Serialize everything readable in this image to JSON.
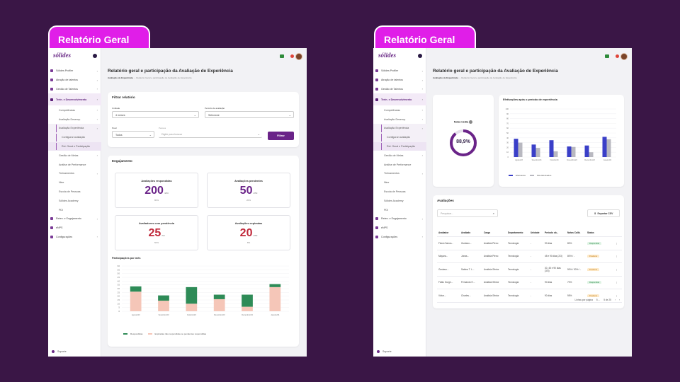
{
  "slide_tag": "Relatório Geral",
  "app": {
    "logo": "sólides",
    "page_title": "Relatório geral e participação da Avaliação de Experiência",
    "breadcrumb_1": "Avaliação de Experiência",
    "breadcrumb_2": "Relatório Geral e participação de Avaliação de Experiência",
    "support": "Suporte"
  },
  "sidebar": {
    "items": [
      {
        "label": "Sólides Profiler",
        "level": 0,
        "chevron": true
      },
      {
        "label": "Atração de talentos",
        "level": 0,
        "chevron": true
      },
      {
        "label": "Gestão de Talentos",
        "level": 0,
        "chevron": true
      },
      {
        "label": "Trein. e Desenvolvimento",
        "level": 0,
        "chevron": true,
        "active": true
      },
      {
        "label": "Competências",
        "level": 1,
        "chevron": true
      },
      {
        "label": "Avaliação Desemp.",
        "level": 1,
        "chevron": true
      },
      {
        "label": "Avaliação Experiência",
        "level": 1,
        "chevron": true,
        "highlight": true
      },
      {
        "label": "Configurar avaliação",
        "level": 2,
        "highlight": true
      },
      {
        "label": "Rel. Geral e Participação",
        "level": 2,
        "highlight": true,
        "current": true
      },
      {
        "label": "Gestão de Metas",
        "level": 1,
        "chevron": true
      },
      {
        "label": "Análise de Performance",
        "level": 1
      },
      {
        "label": "Treinamentos",
        "level": 1,
        "chevron": true
      },
      {
        "label": "Nine",
        "level": 1
      },
      {
        "label": "Escola de Pessoas",
        "level": 1
      },
      {
        "label": "Sólides Academy",
        "level": 1
      },
      {
        "label": "PDI",
        "level": 1
      },
      {
        "label": "Reten. e Engajamento",
        "level": 0,
        "chevron": true
      },
      {
        "label": "eNPS",
        "level": 0
      },
      {
        "label": "Configurações",
        "level": 0,
        "chevron": true
      }
    ]
  },
  "filter": {
    "title": "Filtrar relatório",
    "unidade_label": "Unidade",
    "unidade_value": "4 meses",
    "periodo_label": "Período de avaliação",
    "periodo_value": "Selecione",
    "nivel_label": "Nível",
    "nivel_value": "Todos",
    "pessoa_label": "Pessoa",
    "pessoa_placeholder": "Digite para buscar",
    "button": "Filtrar"
  },
  "engagement": {
    "title": "Engajamento",
    "stats": [
      {
        "title": "Avaliações respondidas",
        "value": "200",
        "unit": "/250",
        "pct": "80%",
        "color": "#6a2388"
      },
      {
        "title": "Avaliações pendentes",
        "value": "50",
        "unit": "/250",
        "pct": "20%",
        "color": "#6a2388"
      },
      {
        "title": "Avaliadores com pendência",
        "value": "25",
        "unit": "/50",
        "pct": "50%",
        "color": "#c0283a"
      },
      {
        "title": "Avaliações expiradas",
        "value": "20",
        "unit": "/250",
        "pct": "8%",
        "color": "#c0283a"
      }
    ],
    "chart_title": "Participações por mês",
    "legend_1": "Respondidas",
    "legend_2": "Expiradas não respondidas ou pendentes respondidas"
  },
  "chart_data": [
    {
      "type": "bar",
      "title": "Participações por mês",
      "stacked": true,
      "categories": [
        "Agosto/23",
        "Setembro/23",
        "Outubro/23",
        "Novembro/23",
        "Dezembro/23",
        "Janeiro/24"
      ],
      "series": [
        {
          "name": "Expiradas não respondidas ou pendentes respondidas",
          "values": [
            26,
            14,
            10,
            16,
            6,
            32
          ],
          "color": "#f5c6b8"
        },
        {
          "name": "Respondidas",
          "values": [
            7,
            7,
            22,
            6,
            16,
            4
          ],
          "color": "#2e8b57"
        }
      ],
      "ylim": [
        0,
        60
      ],
      "yticks": [
        0,
        5,
        10,
        15,
        20,
        25,
        30,
        35,
        40,
        45,
        50,
        55,
        60
      ],
      "grid": true,
      "legend": "bottom-left"
    },
    {
      "type": "bar",
      "title": "Efetivações após o período de experiência",
      "categories": [
        "Agosto/23",
        "Setembro/23",
        "Outubro/23",
        "Novembro/23",
        "Dezembro/23",
        "Janeiro/24"
      ],
      "series": [
        {
          "name": "Efetivados",
          "values": [
            38,
            26,
            35,
            22,
            24,
            42
          ],
          "color": "#3a3fc8"
        },
        {
          "name": "Não Efetivados",
          "values": [
            30,
            19,
            12,
            21,
            10,
            37
          ],
          "color": "#b8b8c0"
        }
      ],
      "ylim": [
        0,
        100
      ],
      "yticks": [
        0,
        10,
        20,
        30,
        40,
        50,
        60,
        70,
        80,
        90,
        100
      ],
      "grid": true,
      "legend": "bottom-left"
    }
  ],
  "nota": {
    "label": "Nota média",
    "value": "88,9%",
    "fraction": 0.889
  },
  "effect_chart": {
    "title": "Efetivações após o período de experiência",
    "legend_1": "Efetivados",
    "legend_2": "Não Efetivados"
  },
  "evaluations": {
    "title": "Avaliações",
    "search_placeholder": "Pesquisar...",
    "export": "Exportar CSV",
    "headers": [
      "Avaliador",
      "Avaliado",
      "Cargo",
      "Departamento",
      "Unidade",
      "Período ob...",
      "Notas Calib.",
      "Status"
    ],
    "rows": [
      [
        "Flavio Sanos...",
        "Gustavo...",
        "Analista Pleno",
        "Tecnologia",
        "-",
        "90 dias",
        "80%",
        "Respondida",
        "ok"
      ],
      [
        "Mayara...",
        "Jonas...",
        "Analista Pleno",
        "Tecnologia",
        "-",
        "45 e 90 dias (2/3)",
        "80% / -",
        "Pendente",
        "pe"
      ],
      [
        "Gustavo...",
        "Sabina T. L...",
        "Analista Sênior",
        "Tecnologia",
        "-",
        "30, 45 e 90 dias (3/3)",
        "90% / 90% / -",
        "Pendente",
        "pe"
      ],
      [
        "Fábio Gurge...",
        "Fernando H...",
        "Analista Sênior",
        "Tecnologia",
        "-",
        "90 dias",
        "70%",
        "Respondida",
        "ok"
      ],
      [
        "Victor...",
        "Charles...",
        "Analista Sênior",
        "Tecnologia",
        "-",
        "90 dias",
        "95%",
        "Pendente",
        "pe"
      ]
    ],
    "pagination_label": "Linhas por página",
    "pagination_value": "5",
    "pagination_range": "5 de 25"
  }
}
